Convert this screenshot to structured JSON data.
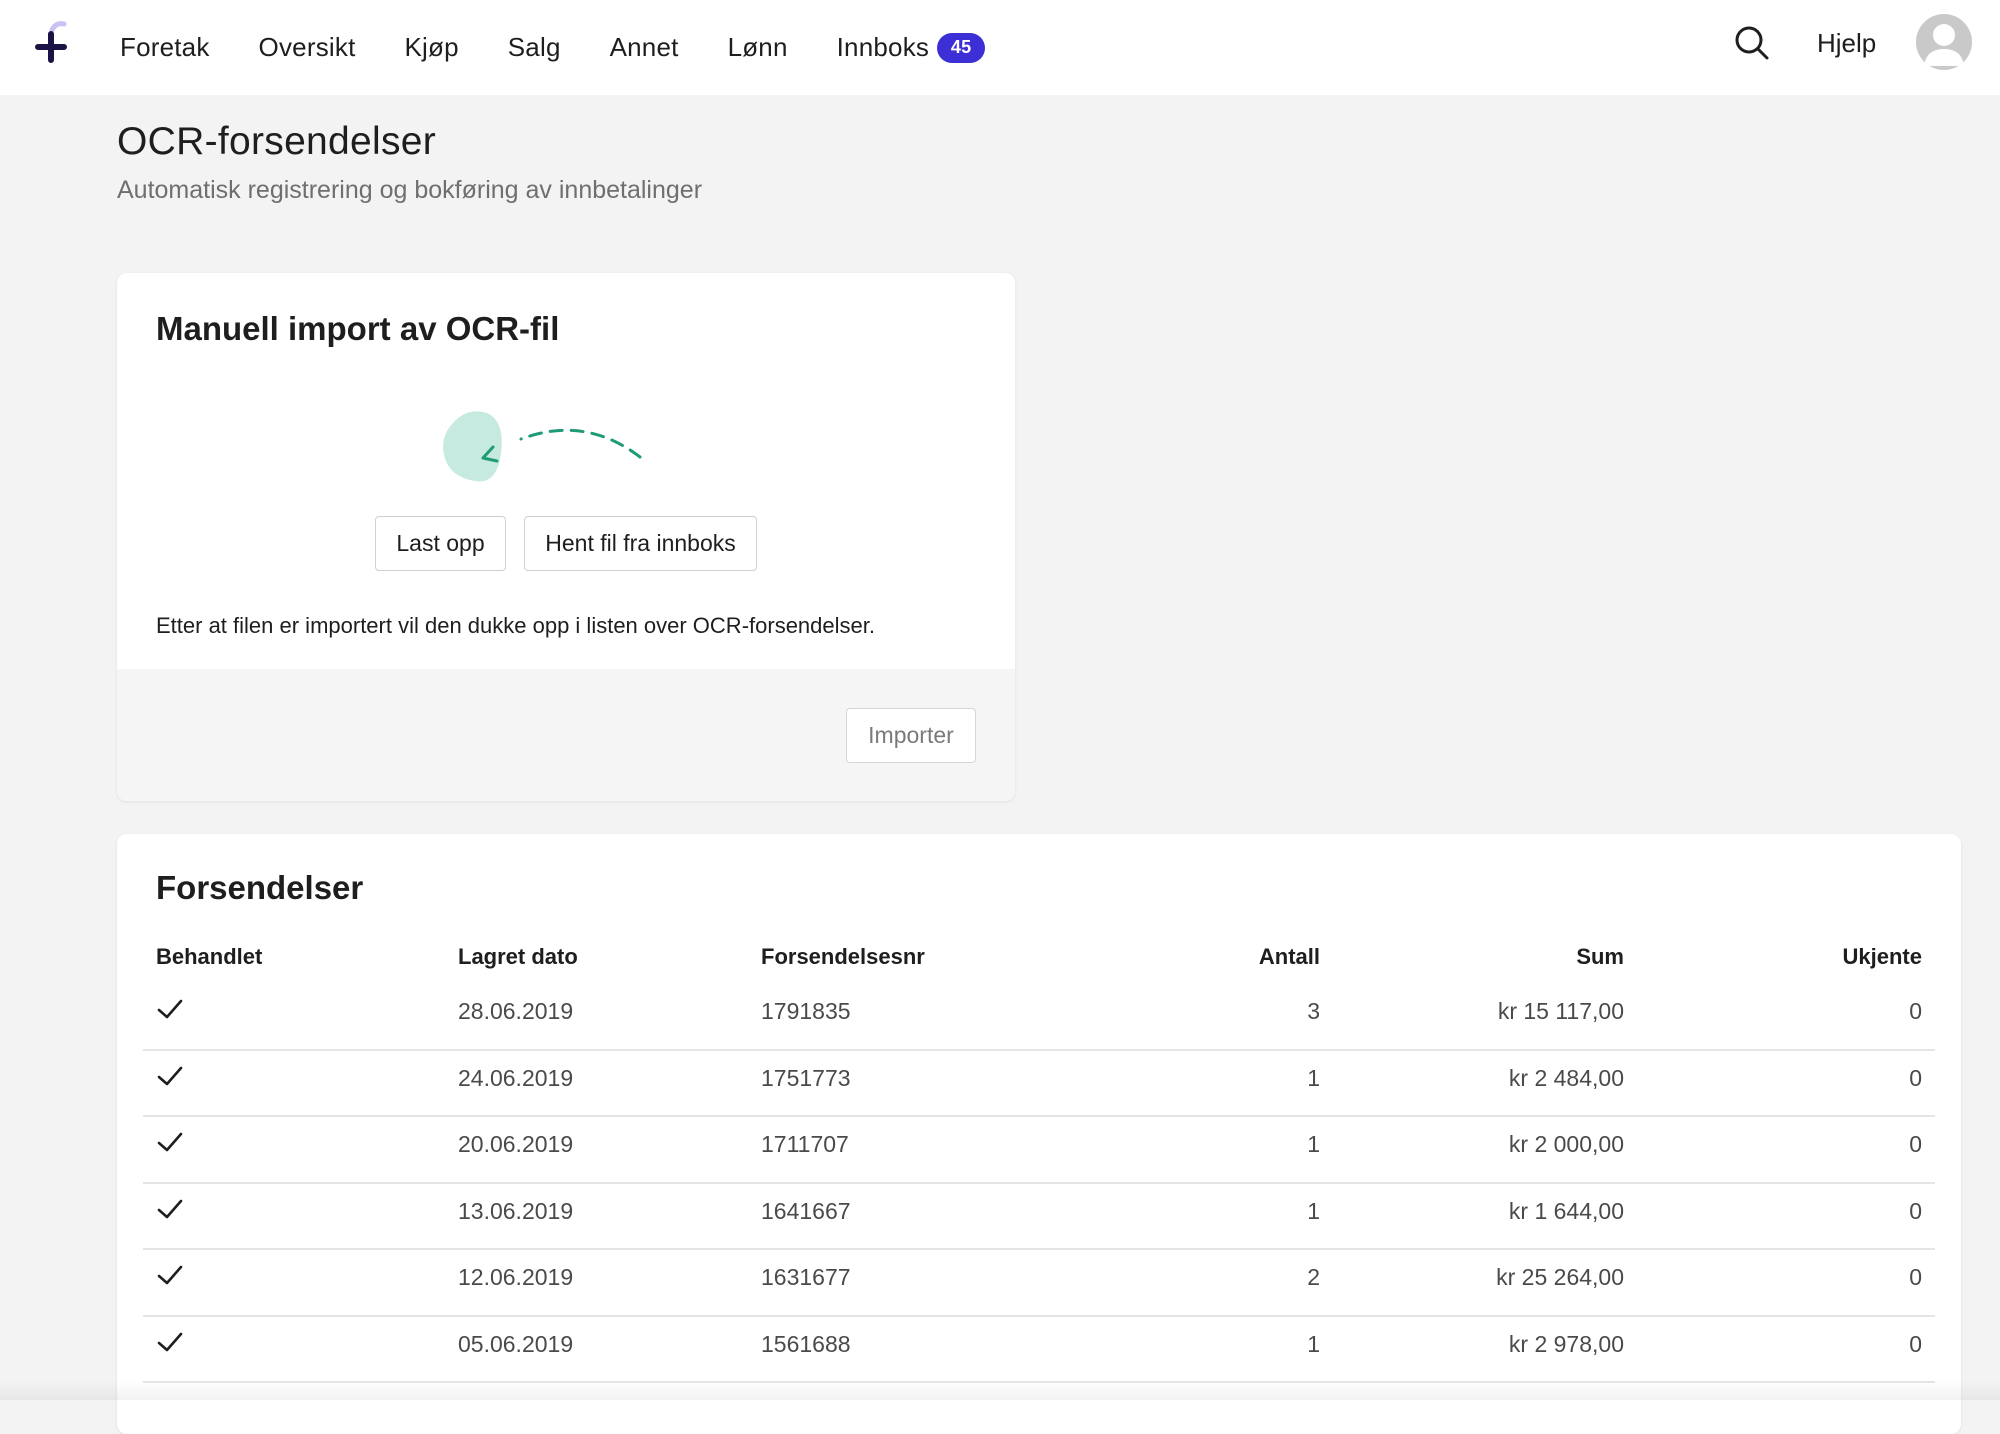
{
  "nav": {
    "items": [
      {
        "label": "Foretak"
      },
      {
        "label": "Oversikt"
      },
      {
        "label": "Kjøp"
      },
      {
        "label": "Salg"
      },
      {
        "label": "Annet"
      },
      {
        "label": "Lønn"
      },
      {
        "label": "Innboks",
        "badge": "45"
      }
    ],
    "help_label": "Hjelp",
    "icons": {
      "logo": "plus-logo",
      "search": "search-icon",
      "avatar": "user-avatar"
    },
    "badge_color": "#3d2fd6"
  },
  "page": {
    "title": "OCR-forsendelser",
    "subtitle": "Automatisk registrering og bokføring av innbetalinger"
  },
  "import_card": {
    "title": "Manuell import av OCR-fil",
    "upload_label": "Last opp",
    "inbox_label": "Hent fil fra innboks",
    "note": "Etter at filen er importert vil den dukke opp i listen over OCR-forsendelser.",
    "import_label": "Importer",
    "illustration": "dashed-arrow-to-blob",
    "accent_color": "#1f9b77"
  },
  "table": {
    "title": "Forsendelser",
    "columns": {
      "behandlet": "Behandlet",
      "dato": "Lagret dato",
      "nr": "Forsendelsesnr",
      "antall": "Antall",
      "sum": "Sum",
      "ukjente": "Ukjente"
    },
    "rows": [
      {
        "behandlet": true,
        "dato": "28.06.2019",
        "nr": "1791835",
        "antall": "3",
        "sum": "kr 15 117,00",
        "ukjente": "0"
      },
      {
        "behandlet": true,
        "dato": "24.06.2019",
        "nr": "1751773",
        "antall": "1",
        "sum": "kr 2 484,00",
        "ukjente": "0"
      },
      {
        "behandlet": true,
        "dato": "20.06.2019",
        "nr": "1711707",
        "antall": "1",
        "sum": "kr 2 000,00",
        "ukjente": "0"
      },
      {
        "behandlet": true,
        "dato": "13.06.2019",
        "nr": "1641667",
        "antall": "1",
        "sum": "kr 1 644,00",
        "ukjente": "0"
      },
      {
        "behandlet": true,
        "dato": "12.06.2019",
        "nr": "1631677",
        "antall": "2",
        "sum": "kr 25 264,00",
        "ukjente": "0"
      },
      {
        "behandlet": true,
        "dato": "05.06.2019",
        "nr": "1561688",
        "antall": "1",
        "sum": "kr 2 978,00",
        "ukjente": "0"
      }
    ]
  }
}
